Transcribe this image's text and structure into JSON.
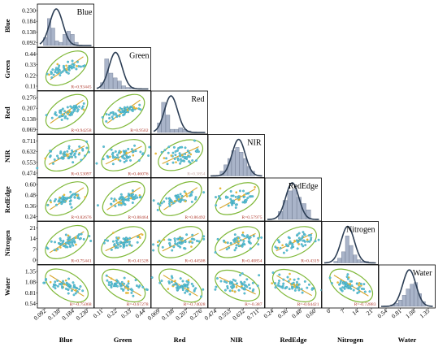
{
  "chart_data": {
    "type": "scatter",
    "subtype": "pair-plot",
    "variables": [
      "Blue",
      "Green",
      "Red",
      "NIR",
      "RedEdge",
      "Nitrogen",
      "Water"
    ],
    "colors": {
      "points": "#5bc4d8",
      "ellipse": "#7fb838",
      "fit_line": "#d7a52a",
      "histogram": "#a9b4c9",
      "density": "#2c3e55",
      "r_text": "#b03a2e"
    },
    "row_ticks": {
      "Blue": [
        "0.230",
        "0.184",
        "0.138",
        "0.092"
      ],
      "Green": [
        "0.44",
        "0.33",
        "0.22",
        "0.11"
      ],
      "Red": [
        "0.276",
        "0.207",
        "0.138",
        "0.069"
      ],
      "NIR": [
        "0.711",
        "0.632",
        "0.553",
        "0.474"
      ],
      "RedEdge": [
        "0.60",
        "0.48",
        "0.36",
        "0.24"
      ],
      "Nitrogen": [
        "21",
        "14",
        "7",
        "0"
      ],
      "Water": [
        "1.35",
        "1.08",
        "0.81",
        "0.54"
      ]
    },
    "col_ticks": {
      "Blue": [
        "0.092",
        "0.138",
        "0.184",
        "0.230"
      ],
      "Green": [
        "0.11",
        "0.22",
        "0.33",
        "0.44"
      ],
      "Red": [
        "0.069",
        "0.138",
        "0.207",
        "0.276"
      ],
      "NIR": [
        "0.474",
        "0.553",
        "0.632",
        "0.711"
      ],
      "RedEdge": [
        "0.24",
        "0.36",
        "0.48",
        "0.60"
      ],
      "Nitrogen": [
        "0",
        "7",
        "14",
        "21"
      ],
      "Water": [
        "0.54",
        "0.81",
        "1.08",
        "1.35"
      ]
    },
    "correlations": [
      {
        "row": "Green",
        "col": "Blue",
        "r": "R=0.93445"
      },
      {
        "row": "Red",
        "col": "Blue",
        "r": "R=0.94258"
      },
      {
        "row": "Red",
        "col": "Green",
        "r": "R=0.9502"
      },
      {
        "row": "NIR",
        "col": "Blue",
        "r": "R=0.53097"
      },
      {
        "row": "NIR",
        "col": "Green",
        "r": "R=0.46076"
      },
      {
        "row": "NIR",
        "col": "Red",
        "r": "R=0.3854"
      },
      {
        "row": "RedEdge",
        "col": "Blue",
        "r": "R=0.82676"
      },
      {
        "row": "RedEdge",
        "col": "Green",
        "r": "R=0.88464"
      },
      {
        "row": "RedEdge",
        "col": "Red",
        "r": "R=0.86492"
      },
      {
        "row": "RedEdge",
        "col": "NIR",
        "r": "R=0.57975"
      },
      {
        "row": "Nitrogen",
        "col": "Blue",
        "r": "R=0.75441"
      },
      {
        "row": "Nitrogen",
        "col": "Green",
        "r": "R=0.41528"
      },
      {
        "row": "Nitrogen",
        "col": "Red",
        "r": "R=0.44508"
      },
      {
        "row": "Nitrogen",
        "col": "NIR",
        "r": "R=0.40854"
      },
      {
        "row": "Nitrogen",
        "col": "RedEdge",
        "r": "R=0.4319"
      },
      {
        "row": "Water",
        "col": "Blue",
        "r": "R=-0.75068"
      },
      {
        "row": "Water",
        "col": "Green",
        "r": "R=-0.67278"
      },
      {
        "row": "Water",
        "col": "Red",
        "r": "R=-0.74028"
      },
      {
        "row": "Water",
        "col": "NIR",
        "r": "R=-0.387"
      },
      {
        "row": "Water",
        "col": "RedEdge",
        "r": "R=-0.64421"
      },
      {
        "row": "Water",
        "col": "Nitrogen",
        "r": "R=-0.72883"
      }
    ],
    "histograms": {
      "Blue": [
        0.25,
        0.85,
        0.55,
        0.15,
        0.1,
        0.35,
        0.45,
        0.35,
        0.1
      ],
      "Green": [
        0.2,
        0.95,
        0.5,
        0.35,
        0.25,
        0.1,
        0.05,
        0.05
      ],
      "Red": [
        0.3,
        0.95,
        0.55,
        0.1,
        0.1,
        0.15,
        0.1,
        0.05
      ],
      "NIR": [
        0.15,
        0.35,
        0.55,
        0.8,
        0.9,
        0.75,
        0.55,
        0.3,
        0.15
      ],
      "RedEdge": [
        0.25,
        0.6,
        0.9,
        0.95,
        0.7,
        0.5,
        0.3
      ],
      "Nitrogen": [
        0.05,
        0.15,
        0.35,
        0.85,
        0.55,
        0.25,
        0.1,
        0.05,
        0.05
      ],
      "Water": [
        0.05,
        0.1,
        0.2,
        0.35,
        0.55,
        0.7,
        0.75,
        0.4,
        0.15
      ]
    },
    "density_peaks": {
      "Blue": 0.3,
      "Green": 0.35,
      "Red": 0.32,
      "NIR": 0.55,
      "RedEdge": 0.48,
      "Nitrogen": 0.45,
      "Water": 0.55
    },
    "legend": "none",
    "grid": false
  }
}
